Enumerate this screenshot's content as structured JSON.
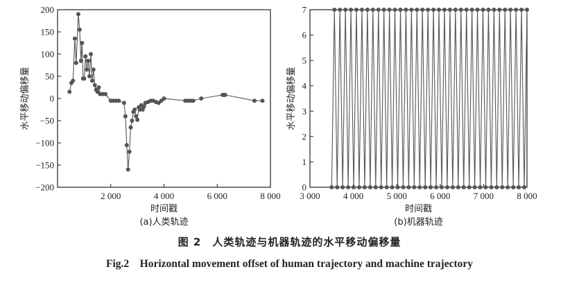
{
  "chart_data": [
    {
      "type": "line",
      "panel_label": "(a)人类轨迹",
      "xlabel": "时间戳",
      "ylabel": "水平移动偏移量",
      "xlim": [
        0,
        8000
      ],
      "ylim": [
        -200,
        200
      ],
      "xticks": [
        2000,
        4000,
        6000,
        8000
      ],
      "xtick_labels": [
        "2 000",
        "4 000",
        "6 000",
        "8 000"
      ],
      "yticks": [
        -200,
        -150,
        -100,
        -50,
        0,
        50,
        100,
        150,
        200
      ],
      "ytick_labels": [
        "−200",
        "−150",
        "−100",
        "−50",
        "0",
        "50",
        "100",
        "150",
        "200"
      ],
      "grid": false,
      "series": [
        {
          "x": [
            450,
            520,
            580,
            650,
            700,
            780,
            830,
            880,
            920,
            960,
            1000,
            1050,
            1100,
            1150,
            1200,
            1250,
            1300,
            1350,
            1400,
            1450,
            1500,
            1550,
            1600,
            1700,
            1800,
            2000,
            2100,
            2200,
            2300,
            2500,
            2550,
            2600,
            2650,
            2700,
            2750,
            2800,
            2850,
            2900,
            2950,
            3000,
            3050,
            3100,
            3150,
            3200,
            3250,
            3300,
            3400,
            3500,
            3600,
            3700,
            3800,
            3900,
            4000,
            4800,
            4900,
            5000,
            5100,
            5400,
            6200,
            6250,
            6300,
            7400,
            7700
          ],
          "y": [
            15,
            35,
            40,
            135,
            80,
            190,
            155,
            85,
            125,
            45,
            45,
            95,
            65,
            85,
            50,
            100,
            40,
            65,
            30,
            20,
            15,
            25,
            10,
            10,
            10,
            -5,
            -5,
            -5,
            -5,
            -10,
            -40,
            -105,
            -160,
            -120,
            -65,
            -50,
            -30,
            -25,
            -40,
            -48,
            -20,
            -25,
            -15,
            -25,
            -18,
            -10,
            -8,
            -5,
            -5,
            -8,
            -10,
            -5,
            0,
            -5,
            -5,
            -5,
            -5,
            0,
            8,
            8,
            8,
            -5,
            -5
          ]
        }
      ]
    },
    {
      "type": "line",
      "panel_label": "(b)机器轨迹",
      "xlabel": "时间戳",
      "ylabel": "水平移动偏移量",
      "xlim": [
        3000,
        8000
      ],
      "ylim": [
        0,
        7
      ],
      "xticks": [
        3000,
        4000,
        5000,
        6000,
        7000,
        8000
      ],
      "xtick_labels": [
        "3 000",
        "4 000",
        "5 000",
        "6 000",
        "7 000",
        "8 000"
      ],
      "yticks": [
        0,
        1,
        2,
        3,
        4,
        5,
        6,
        7
      ],
      "ytick_labels": [
        "0",
        "1",
        "2",
        "3",
        "4",
        "5",
        "6",
        "7"
      ],
      "grid": false,
      "series": [
        {
          "x_start": 3500,
          "x_end": 8000,
          "values": [
            0,
            7
          ],
          "pattern": "alternating",
          "oscillations": 72
        }
      ]
    }
  ],
  "captions": {
    "zh": "图 2　人类轨迹与机器轨迹的水平移动偏移量",
    "en": "Fig.2　Horizontal movement offset of human trajectory and machine trajectory"
  }
}
